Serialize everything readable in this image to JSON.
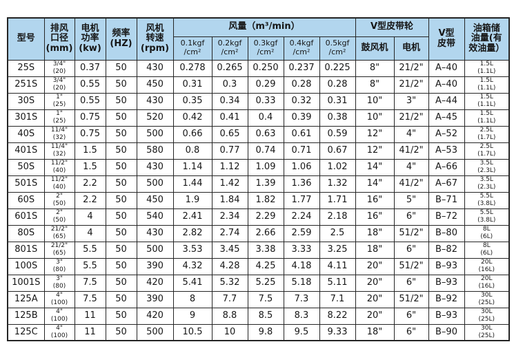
{
  "colors": {
    "header_bg": "#b2d6ee",
    "border": "#242424",
    "text": "#161616",
    "row_bg": "#ffffff"
  },
  "table": {
    "header": {
      "model": "型号",
      "outlet_diameter": "排风\n口径\n(mm)",
      "motor_power": "电机\n功率\n(kw)",
      "frequency": "频率\n(HZ)",
      "fan_speed": "风机\n转速\n(rpm)",
      "airflow_group": "风量（m³/min）",
      "airflow_cols": [
        "0.1kgf\n/cm²",
        "0.2kgf\n/cm²",
        "0.3kgf\n/cm²",
        "0.4kgf\n/cm²",
        "0.5kgf\n/cm²"
      ],
      "pulley_group": "V型皮带轮",
      "pulley_blower": "鼓风机",
      "pulley_motor": "电机",
      "v_belt": "V型\n皮带",
      "oil_tank": "油箱储\n油量(有\n效油量）"
    },
    "rows": [
      {
        "model": "25S",
        "diameter": "3/4\"\n(20)",
        "power": "0.37",
        "freq": "50",
        "rpm": "430",
        "airflow": [
          "0.278",
          "0.265",
          "0.250",
          "0.237",
          "0.225"
        ],
        "blower_pulley": "8\"",
        "motor_pulley": "21/2\"",
        "belt": "A–40",
        "oil": "1.5L\n(1.1L)"
      },
      {
        "model": "251S",
        "diameter": "3/4\"\n(20)",
        "power": "0.55",
        "freq": "50",
        "rpm": "450",
        "airflow": [
          "0.31",
          "0.3",
          "0.29",
          "0.28",
          "0.28"
        ],
        "blower_pulley": "8\"",
        "motor_pulley": "21/2\"",
        "belt": "A–40",
        "oil": "1.5L\n(1.1L)"
      },
      {
        "model": "30S",
        "diameter": "1\"\n(25)",
        "power": "0.55",
        "freq": "50",
        "rpm": "430",
        "airflow": [
          "0.35",
          "0.34",
          "0.33",
          "0.32",
          "0.31"
        ],
        "blower_pulley": "10\"",
        "motor_pulley": "3\"",
        "belt": "A–44",
        "oil": "1.5L\n(1.1L)"
      },
      {
        "model": "301S",
        "diameter": "1\"\n(25)",
        "power": "0.75",
        "freq": "50",
        "rpm": "520",
        "airflow": [
          "0.42",
          "0.41",
          "0.4",
          "0.39",
          "0.38"
        ],
        "blower_pulley": "10\"",
        "motor_pulley": "21/2\"",
        "belt": "A–45",
        "oil": "1.5L\n(1.1L)"
      },
      {
        "model": "40S",
        "diameter": "11/4\"\n(32)",
        "power": "0.75",
        "freq": "50",
        "rpm": "500",
        "airflow": [
          "0.66",
          "0.65",
          "0.63",
          "0.61",
          "0.59"
        ],
        "blower_pulley": "12\"",
        "motor_pulley": "4\"",
        "belt": "A–52",
        "oil": "2.5L\n(1.7L)"
      },
      {
        "model": "401S",
        "diameter": "11/4\"\n(32)",
        "power": "1.5",
        "freq": "50",
        "rpm": "580",
        "airflow": [
          "0.8",
          "0.77",
          "0.74",
          "0.71",
          "0.67"
        ],
        "blower_pulley": "12\"",
        "motor_pulley": "41/2\"",
        "belt": "A–53",
        "oil": "2.5L\n(1.7L)"
      },
      {
        "model": "50S",
        "diameter": "11/2\"\n(40)",
        "power": "1.5",
        "freq": "50",
        "rpm": "430",
        "airflow": [
          "1.14",
          "1.12",
          "1.09",
          "1.06",
          "1.02"
        ],
        "blower_pulley": "14\"",
        "motor_pulley": "4\"",
        "belt": "A–66",
        "oil": "3.5L\n(2.3L)"
      },
      {
        "model": "501S",
        "diameter": "11/2\"\n(40)",
        "power": "2.2",
        "freq": "50",
        "rpm": "500",
        "airflow": [
          "1.44",
          "1.42",
          "1.39",
          "1.36",
          "1.32"
        ],
        "blower_pulley": "14\"",
        "motor_pulley": "41/2\"",
        "belt": "A–67",
        "oil": "3.5L\n(2.3L)"
      },
      {
        "model": "60S",
        "diameter": "2\"\n(50)",
        "power": "2.2",
        "freq": "50",
        "rpm": "450",
        "airflow": [
          "1.9",
          "1.84",
          "1.82",
          "1.77",
          "1.71"
        ],
        "blower_pulley": "16\"",
        "motor_pulley": "5\"",
        "belt": "B–71",
        "oil": "5.5L\n(3.8L)"
      },
      {
        "model": "601S",
        "diameter": "2\"\n(50)",
        "power": "4",
        "freq": "50",
        "rpm": "540",
        "airflow": [
          "2.41",
          "2.34",
          "2.29",
          "2.24",
          "2.18"
        ],
        "blower_pulley": "16\"",
        "motor_pulley": "6\"",
        "belt": "B–72",
        "oil": "5.5L\n(3.8L)"
      },
      {
        "model": "80S",
        "diameter": "21/2\"\n(65)",
        "power": "4",
        "freq": "50",
        "rpm": "430",
        "airflow": [
          "2.82",
          "2.74",
          "2.66",
          "2.59",
          "2.5"
        ],
        "blower_pulley": "18\"",
        "motor_pulley": "51/2\"",
        "belt": "B–80",
        "oil": "8L\n(6L)"
      },
      {
        "model": "801S",
        "diameter": "21/2\"\n(65)",
        "power": "5.5",
        "freq": "50",
        "rpm": "500",
        "airflow": [
          "3.53",
          "3.45",
          "3.38",
          "3.33",
          "3.25"
        ],
        "blower_pulley": "18\"",
        "motor_pulley": "6\"",
        "belt": "B–82",
        "oil": "8L\n(6L)"
      },
      {
        "model": "100S",
        "diameter": "3\"\n(80)",
        "power": "5.5",
        "freq": "50",
        "rpm": "390",
        "airflow": [
          "4.32",
          "4.28",
          "4.25",
          "4.18",
          "4.11"
        ],
        "blower_pulley": "20\"",
        "motor_pulley": "51/2\"",
        "belt": "B–93",
        "oil": "20L\n(16L)"
      },
      {
        "model": "1001S",
        "diameter": "3\"\n(80)",
        "power": "7.5",
        "freq": "50",
        "rpm": "420",
        "airflow": [
          "5.41",
          "5.32",
          "5.25",
          "5.18",
          "5.11"
        ],
        "blower_pulley": "20\"",
        "motor_pulley": "6\"",
        "belt": "B–93",
        "oil": "20L\n(16L)"
      },
      {
        "model": "125A",
        "diameter": "4\"\n(100)",
        "power": "7.5",
        "freq": "50",
        "rpm": "390",
        "airflow": [
          "8",
          "7.7",
          "7.5",
          "7.3",
          "7.1"
        ],
        "blower_pulley": "20\"",
        "motor_pulley": "51/2\"",
        "belt": "B–92",
        "oil": "30L\n(25L)"
      },
      {
        "model": "125B",
        "diameter": "4\"\n(100)",
        "power": "11",
        "freq": "50",
        "rpm": "420",
        "airflow": [
          "9",
          "8.8",
          "8.5",
          "8.3",
          "8.22"
        ],
        "blower_pulley": "20\"",
        "motor_pulley": "6\"",
        "belt": "B–93",
        "oil": "30L\n(25L)"
      },
      {
        "model": "125C",
        "diameter": "4\"\n(100)",
        "power": "11",
        "freq": "50",
        "rpm": "500",
        "airflow": [
          "10.5",
          "10",
          "9.8",
          "9.5",
          "9.33"
        ],
        "blower_pulley": "18\"",
        "motor_pulley": "6\"",
        "belt": "B–90",
        "oil": "30L\n(25L)"
      }
    ]
  }
}
